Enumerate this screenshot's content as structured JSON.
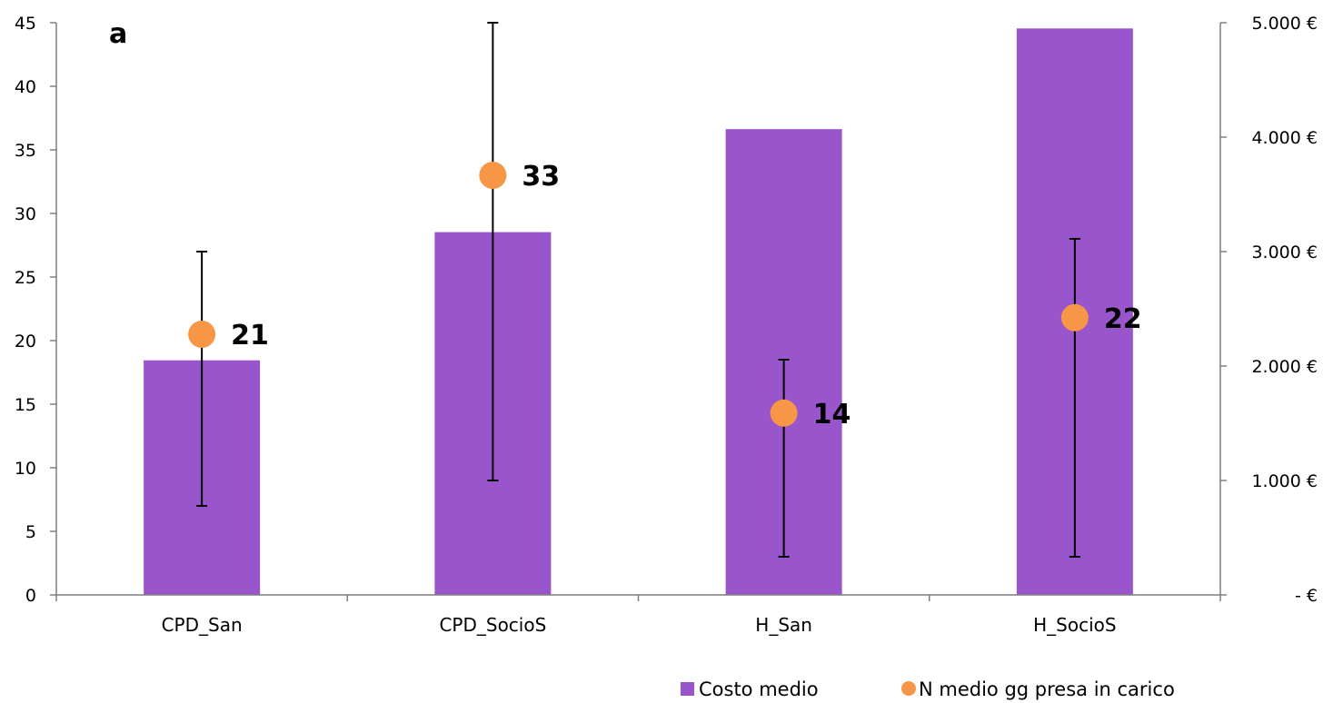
{
  "chart_data": {
    "type": "bar",
    "panel_label": "a",
    "categories": [
      "CPD_San",
      "CPD_SocioS",
      "H_San",
      "H_SocioS"
    ],
    "left_axis": {
      "ylim": [
        0,
        45
      ],
      "ticks": [
        0,
        5,
        10,
        15,
        20,
        25,
        30,
        35,
        40,
        45
      ],
      "tick_labels": [
        "0",
        "5",
        "10",
        "15",
        "20",
        "25",
        "30",
        "35",
        "40",
        "45"
      ]
    },
    "right_axis": {
      "ylim": [
        0,
        5000
      ],
      "ticks": [
        0,
        1000,
        2000,
        3000,
        4000,
        5000
      ],
      "tick_labels": [
        "-  €",
        "1.000 €",
        "2.000 €",
        "3.000 €",
        "4.000 €",
        "5.000 €"
      ]
    },
    "series": [
      {
        "name": "Costo medio",
        "kind": "bar",
        "axis": "right",
        "color": "#9955CC",
        "values": [
          2050,
          3170,
          4070,
          4950
        ]
      },
      {
        "name": "N medio gg presa in carico",
        "kind": "point",
        "axis": "left",
        "color": "#F79646",
        "values": [
          20.5,
          33.0,
          14.3,
          21.8
        ],
        "data_labels": [
          "21",
          "33",
          "14",
          "22"
        ],
        "error_low": [
          7,
          9,
          3,
          3
        ],
        "error_high": [
          27,
          45,
          18.5,
          28
        ]
      }
    ],
    "legend": {
      "position": "bottom-right",
      "entries": [
        "Costo medio",
        "N medio gg presa in carico"
      ]
    },
    "grid": false
  }
}
